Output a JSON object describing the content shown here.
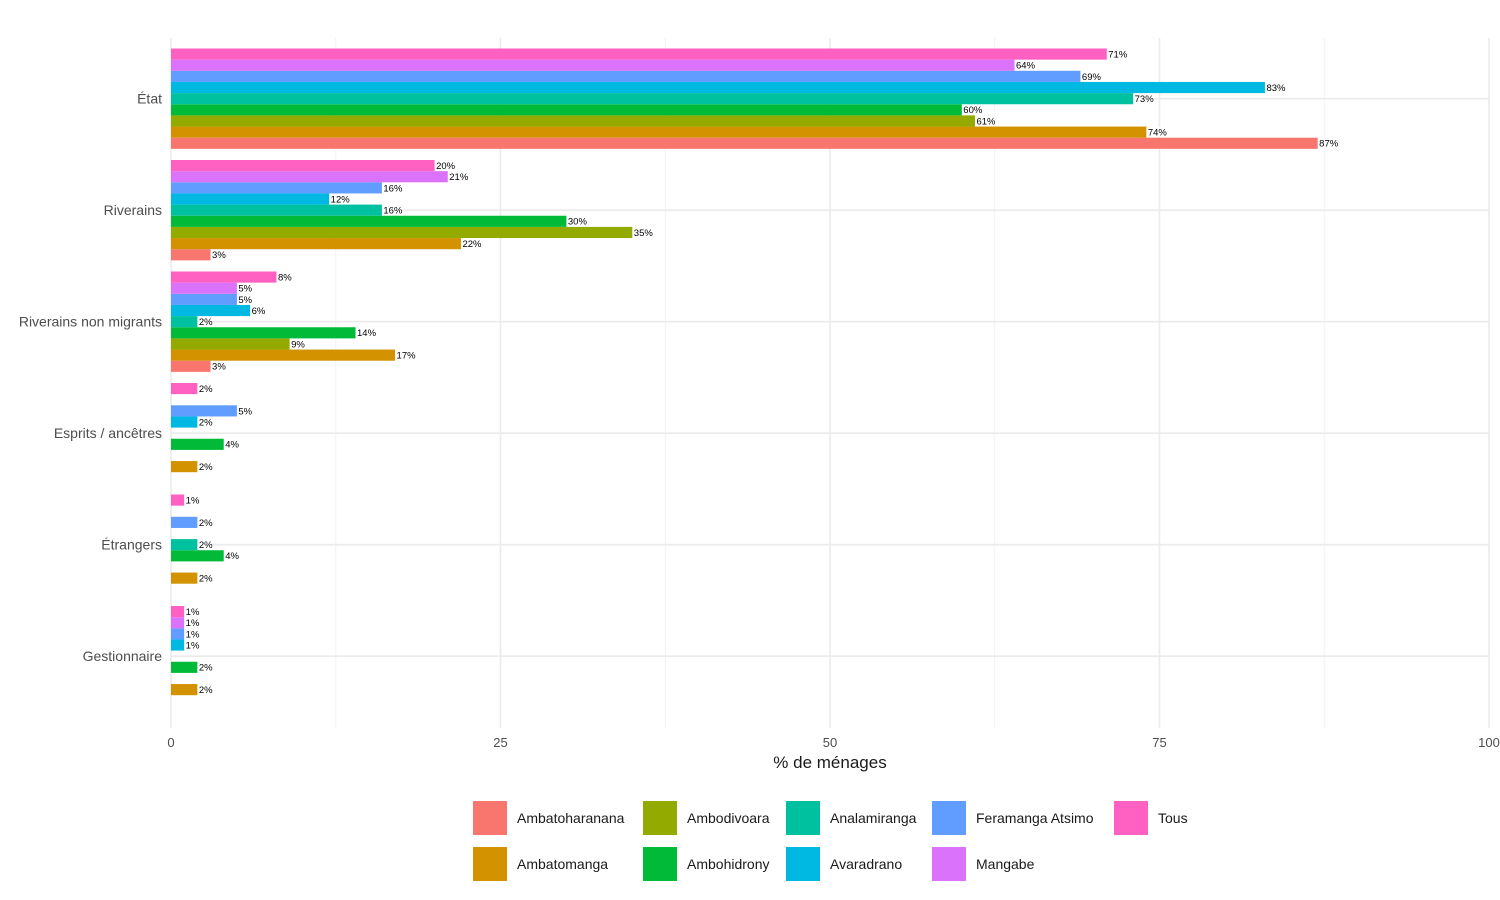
{
  "chart_data": {
    "type": "bar",
    "orientation": "horizontal",
    "xlabel": "% de ménages",
    "ylabel": "",
    "xlim": [
      0,
      100
    ],
    "xticks": [
      0,
      25,
      50,
      75,
      100
    ],
    "grid": true,
    "legend_position": "bottom",
    "value_suffix": "%",
    "categories": [
      "État",
      "Riverains",
      "Riverains non migrants",
      "Esprits / ancêtres",
      "Étrangers",
      "Gestionnaire"
    ],
    "series": [
      {
        "name": "Ambatoharanana",
        "color": "#F8766D",
        "values": [
          87,
          3,
          3,
          null,
          null,
          null
        ]
      },
      {
        "name": "Ambatomanga",
        "color": "#D39200",
        "values": [
          74,
          22,
          17,
          2,
          2,
          2
        ]
      },
      {
        "name": "Ambodivoara",
        "color": "#93AA00",
        "values": [
          61,
          35,
          9,
          null,
          null,
          null
        ]
      },
      {
        "name": "Ambohidrony",
        "color": "#00BA38",
        "values": [
          60,
          30,
          14,
          4,
          4,
          2
        ]
      },
      {
        "name": "Analamiranga",
        "color": "#00C19F",
        "values": [
          73,
          16,
          2,
          null,
          2,
          null
        ]
      },
      {
        "name": "Avaradrano",
        "color": "#00B9E3",
        "values": [
          83,
          12,
          6,
          2,
          null,
          1
        ]
      },
      {
        "name": "Feramanga Atsimo",
        "color": "#619CFF",
        "values": [
          69,
          16,
          5,
          5,
          2,
          1
        ]
      },
      {
        "name": "Mangabe",
        "color": "#DB72FB",
        "values": [
          64,
          21,
          5,
          null,
          null,
          1
        ]
      },
      {
        "name": "Tous",
        "color": "#FF61C3",
        "values": [
          71,
          20,
          8,
          2,
          1,
          1
        ]
      }
    ]
  }
}
